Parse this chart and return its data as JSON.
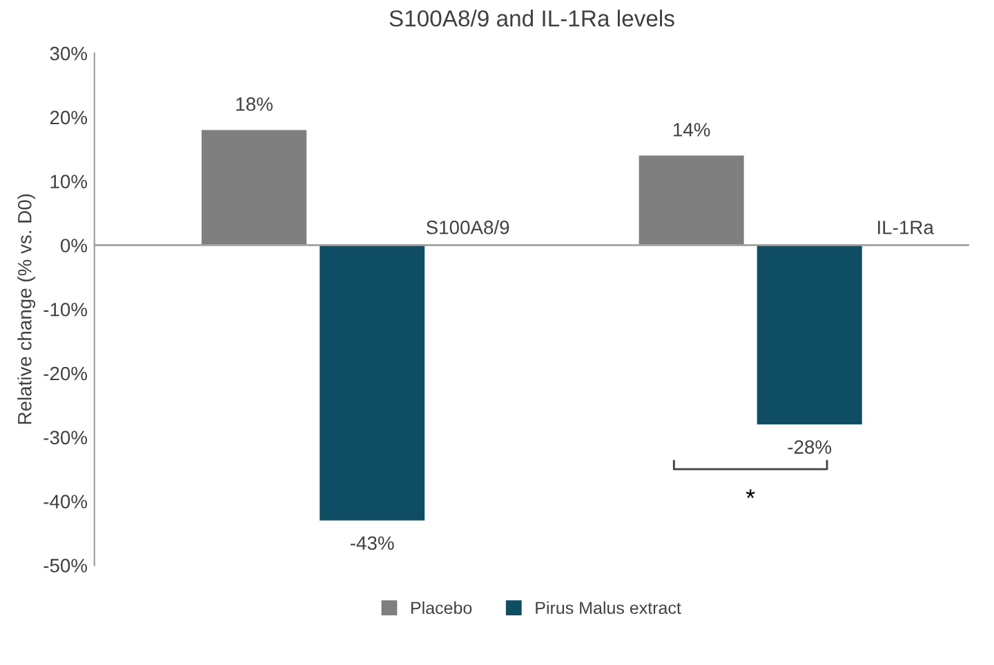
{
  "chart_data": {
    "type": "bar",
    "title": "S100A8/9 and IL-1Ra levels",
    "ylabel": "Relative change (% vs. D0)",
    "categories": [
      "S100A8/9",
      "IL-1Ra"
    ],
    "series": [
      {
        "name": "Placebo",
        "color": "#7f7f7f",
        "values": [
          18,
          14
        ],
        "value_labels": [
          "18%",
          "14%"
        ]
      },
      {
        "name": "Pirus Malus extract",
        "color": "#0e4d64",
        "values": [
          -43,
          -28
        ],
        "value_labels": [
          "-43%",
          "-28%"
        ]
      }
    ],
    "ylim": [
      -50,
      30
    ],
    "yticks": [
      {
        "value": -50,
        "label": "-50%"
      },
      {
        "value": -40,
        "label": "-40%"
      },
      {
        "value": -30,
        "label": "-30%"
      },
      {
        "value": -20,
        "label": "-20%"
      },
      {
        "value": -10,
        "label": "-10%"
      },
      {
        "value": 0,
        "label": "0%"
      },
      {
        "value": 10,
        "label": "10%"
      },
      {
        "value": 20,
        "label": "20%"
      },
      {
        "value": 30,
        "label": "30%"
      }
    ],
    "annotations": [
      "*"
    ],
    "grid": false,
    "legend": "bottom"
  }
}
